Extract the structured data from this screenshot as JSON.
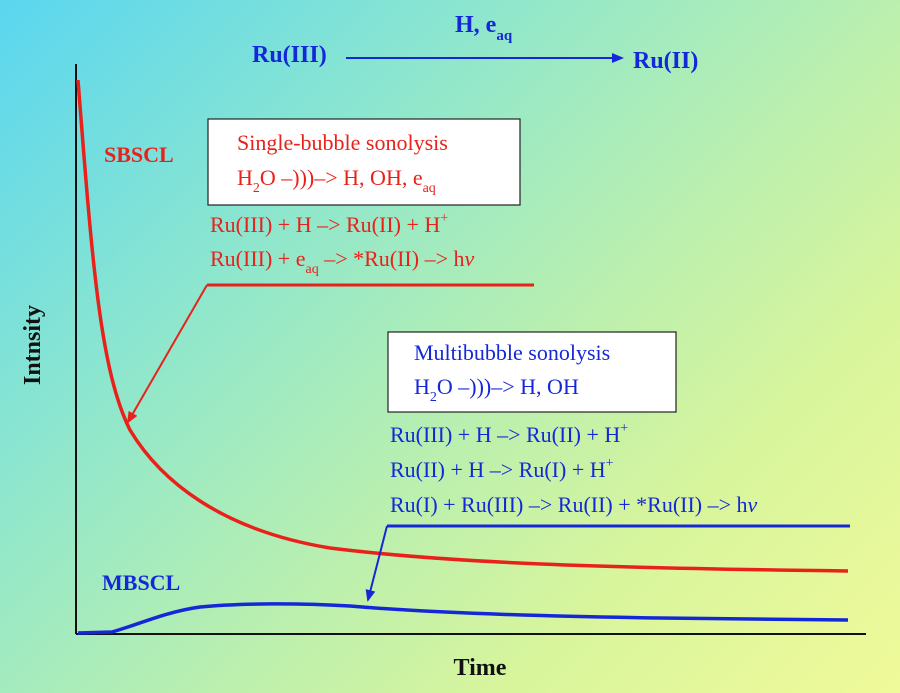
{
  "axes": {
    "xlabel": "Time",
    "ylabel": "Intnsity"
  },
  "top_reaction": {
    "left": "Ru(III)",
    "right": "Ru(II)",
    "over_arrow": "H, e",
    "over_arrow_sub": "aq"
  },
  "sbscl": {
    "label": "SBSCL",
    "box_title": "Single-bubble sonolysis",
    "box_eq_part1": "H",
    "box_eq_sub1": "2",
    "box_eq_part2": "O –)))–> H, OH, e",
    "box_eq_sub2": "aq",
    "reaction1_main": "Ru(III) + H –> Ru(II) + H",
    "reaction1_sup": "+",
    "reaction2_part1": "Ru(III) + e",
    "reaction2_sub": "aq",
    "reaction2_part2": " –> *Ru(II) –> h",
    "reaction2_nu": "v"
  },
  "mbscl": {
    "label": "MBSCL",
    "box_title": "Multibubble sonolysis",
    "box_eq_part1": "H",
    "box_eq_sub1": "2",
    "box_eq_part2": "O –)))–> H, OH",
    "reaction1_main": "Ru(III) + H –> Ru(II) + H",
    "reaction1_sup": "+",
    "reaction2_main": "Ru(II) + H –> Ru(I) + H",
    "reaction2_sup": "+",
    "reaction3_main": "Ru(I) + Ru(III) –> Ru(II) + *Ru(II) –> h",
    "reaction3_nu": "v"
  },
  "colors": {
    "sbscl": "#e8221a",
    "mbscl": "#1528d8",
    "axes": "#111111"
  }
}
